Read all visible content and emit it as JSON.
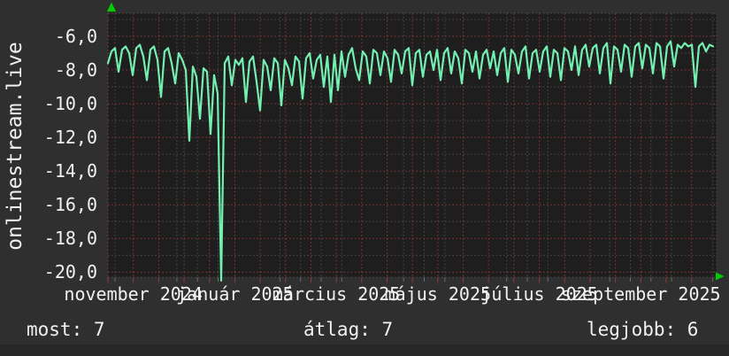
{
  "title_vertical": "onlinestream.live",
  "stats": [
    {
      "label": "most",
      "value": "7",
      "text": "most: 7"
    },
    {
      "label": "átlag",
      "value": "7",
      "text": "átlag: 7"
    },
    {
      "label": "legjobb",
      "value": "6",
      "text": "legjobb: 6"
    }
  ],
  "colors": {
    "page_background": "#2f2f2f",
    "bottom_strip": "#282828",
    "plot_background": "#1e1e1e",
    "grid_minor": "#4c4c4c",
    "grid_major": "#8f3a3a",
    "line": "#73efb2",
    "axis_arrow": "#00cc00",
    "text": "#f1f1f1"
  },
  "chart_data": {
    "type": "line",
    "title": "onlinestream.live",
    "xlabel": "",
    "ylabel": "",
    "legend": "none",
    "grid": "dotted minor (gray) + dotted major (dark red), half-month vertical majors",
    "ylim": [
      -20.4,
      -4.6
    ],
    "y_tick_labels": [
      "-6,0",
      "-8,0",
      "-10,0",
      "-12,0",
      "-14,0",
      "-16,0",
      "-18,0",
      "-20,0"
    ],
    "y_tick_values": [
      -6,
      -8,
      -10,
      -12,
      -14,
      -16,
      -18,
      -20
    ],
    "x_tick_labels": [
      "november 2024",
      "január 2025",
      "március 2025",
      "május 2025",
      "július 2025",
      "szeptember 2025"
    ],
    "x_span": "mid-October 2024 to mid-October 2025, points evenly spaced",
    "summary": {
      "most": 7,
      "atlag": 7,
      "legjobb": 6
    },
    "series": [
      {
        "name": "onlinestream.live",
        "values": [
          -7.6,
          -6.9,
          -6.7,
          -8.1,
          -6.8,
          -6.6,
          -7.0,
          -8.3,
          -6.7,
          -6.5,
          -7.2,
          -8.6,
          -6.8,
          -6.6,
          -7.4,
          -9.6,
          -6.9,
          -6.7,
          -7.6,
          -8.8,
          -7.0,
          -7.4,
          -8.0,
          -12.2,
          -7.8,
          -8.4,
          -10.9,
          -7.9,
          -8.1,
          -11.8,
          -8.3,
          -9.4,
          -20.5,
          -7.6,
          -7.2,
          -8.9,
          -7.4,
          -7.7,
          -7.3,
          -9.9,
          -7.5,
          -7.2,
          -8.7,
          -10.4,
          -7.4,
          -7.8,
          -9.2,
          -7.3,
          -7.6,
          -10.1,
          -7.4,
          -7.9,
          -8.9,
          -7.2,
          -7.5,
          -9.7,
          -7.3,
          -7.0,
          -8.5,
          -7.4,
          -7.1,
          -9.0,
          -7.2,
          -9.9,
          -7.1,
          -9.2,
          -6.9,
          -8.4,
          -7.1,
          -6.7,
          -7.9,
          -8.6,
          -6.9,
          -7.2,
          -8.8,
          -6.8,
          -7.0,
          -8.3,
          -6.9,
          -7.3,
          -8.7,
          -6.8,
          -7.1,
          -8.2,
          -6.9,
          -6.7,
          -8.9,
          -7.0,
          -6.8,
          -8.4,
          -7.1,
          -6.9,
          -8.0,
          -6.8,
          -8.6,
          -7.0,
          -6.7,
          -8.2,
          -6.9,
          -7.3,
          -8.8,
          -6.8,
          -7.0,
          -8.1,
          -6.9,
          -8.5,
          -7.1,
          -6.8,
          -7.9,
          -6.9,
          -8.3,
          -7.0,
          -6.7,
          -8.7,
          -6.8,
          -7.1,
          -8.2,
          -6.9,
          -6.6,
          -8.5,
          -7.0,
          -6.8,
          -8.1,
          -6.9,
          -6.6,
          -8.4,
          -6.8,
          -7.0,
          -8.6,
          -6.7,
          -6.9,
          -8.0,
          -6.6,
          -8.3,
          -6.8,
          -6.5,
          -7.8,
          -6.7,
          -6.5,
          -8.2,
          -6.7,
          -6.4,
          -8.8,
          -6.6,
          -6.8,
          -8.1,
          -6.5,
          -6.7,
          -8.4,
          -6.6,
          -6.4,
          -7.9,
          -6.5,
          -6.7,
          -8.2,
          -6.4,
          -6.6,
          -8.5,
          -6.6,
          -6.3,
          -7.8,
          -6.5,
          -6.7,
          -6.4,
          -6.6,
          -6.5,
          -9.0,
          -6.6,
          -6.4,
          -6.9,
          -6.5,
          -6.6
        ]
      }
    ]
  }
}
